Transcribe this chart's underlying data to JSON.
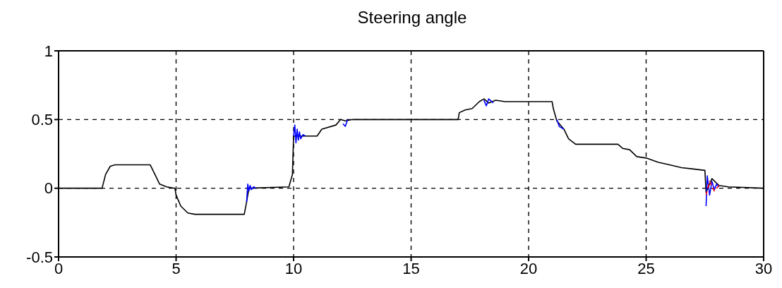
{
  "chart_data": {
    "type": "line",
    "title": "Steering angle",
    "xlim": [
      0,
      30
    ],
    "xticks": [
      0,
      5,
      10,
      15,
      20,
      25,
      30
    ],
    "ylim": [
      -0.5,
      1
    ],
    "yticks": [
      -0.5,
      0,
      0.5,
      1
    ],
    "grid": true,
    "marker": "none",
    "series": [
      {
        "color": "#000000",
        "x": [
          0,
          1.85,
          2.0,
          2.2,
          2.4,
          3.9,
          4.1,
          4.3,
          4.6,
          4.95,
          5.0,
          5.2,
          5.5,
          5.8,
          6.5,
          7.9,
          8.0,
          8.1,
          9.8,
          9.95,
          10.0,
          11.0,
          11.2,
          11.8,
          12.0,
          12.2,
          12.5,
          12.8,
          17.0,
          17.05,
          17.3,
          17.6,
          17.9,
          18.1,
          18.3,
          18.6,
          19.0,
          21.0,
          21.05,
          21.2,
          21.5,
          21.7,
          22.0,
          23.8,
          24.0,
          24.3,
          24.6,
          25.0,
          25.5,
          26.0,
          26.5,
          27.0,
          27.5,
          27.55,
          27.8,
          28.1,
          28.5,
          30
        ],
        "values": [
          0,
          0,
          0.1,
          0.16,
          0.17,
          0.17,
          0.1,
          0.03,
          0.01,
          0,
          -0.05,
          -0.13,
          -0.18,
          -0.19,
          -0.19,
          -0.19,
          -0.1,
          0,
          0.01,
          0.1,
          0.38,
          0.38,
          0.43,
          0.46,
          0.5,
          0.49,
          0.5,
          0.5,
          0.5,
          0.55,
          0.57,
          0.58,
          0.63,
          0.65,
          0.62,
          0.64,
          0.63,
          0.63,
          0.58,
          0.49,
          0.43,
          0.36,
          0.32,
          0.32,
          0.29,
          0.28,
          0.23,
          0.22,
          0.19,
          0.17,
          0.15,
          0.14,
          0.13,
          -0.03,
          0.07,
          0.02,
          0.01,
          0
        ]
      },
      {
        "color": "#0000ff",
        "x": [
          8.0,
          8.05,
          8.1,
          8.15,
          8.2,
          8.3,
          8.4,
          9.0,
          10.0,
          10.05,
          10.1,
          10.15,
          10.2,
          10.25,
          10.3,
          10.4,
          10.5,
          11.5,
          12.1,
          12.2,
          12.3,
          15.0,
          18.1,
          18.2,
          18.3,
          18.5,
          20.0,
          21.2,
          21.3,
          21.5,
          25.0,
          27.55,
          27.6,
          27.7,
          27.8,
          27.9,
          28.0,
          28.1
        ],
        "values": [
          -0.1,
          0.03,
          -0.02,
          0.02,
          -0.01,
          0.01,
          0,
          null,
          0.38,
          0.46,
          0.33,
          0.43,
          0.35,
          0.41,
          0.36,
          0.39,
          0.38,
          null,
          0.47,
          0.45,
          0.5,
          null,
          0.64,
          0.6,
          0.65,
          0.62,
          null,
          0.5,
          0.45,
          0.43,
          null,
          -0.13,
          0.09,
          -0.05,
          0.05,
          -0.01,
          0.03,
          0.01
        ]
      },
      {
        "color": "#ff0000",
        "line_style": "dashed",
        "x": [
          27.55,
          27.7,
          27.9,
          28.1
        ],
        "values": [
          -0.05,
          0.05,
          -0.02,
          0.02
        ]
      }
    ]
  }
}
